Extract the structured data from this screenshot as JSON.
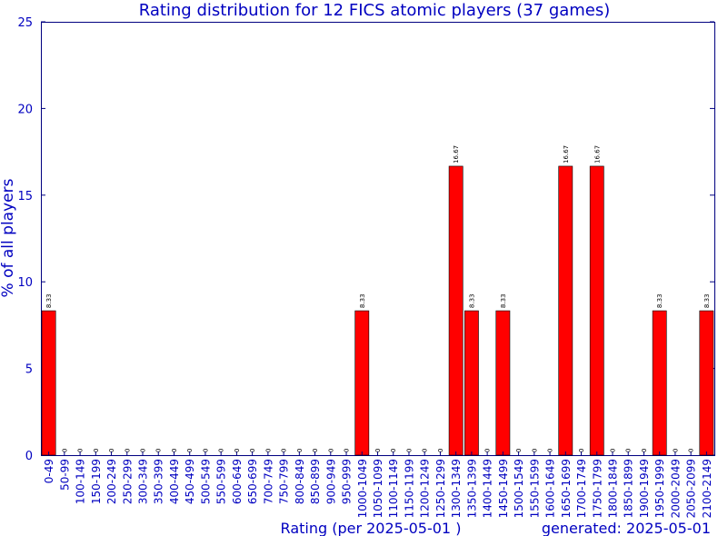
{
  "chart_data": {
    "type": "bar",
    "title": "Rating distribution for 12 FICS atomic players (37 games)",
    "xlabel": "Rating (per 2025-05-01 )",
    "ylabel": "% of all players",
    "footer": "generated: 2025-05-01",
    "ylim": [
      0,
      25
    ],
    "yticks": [
      0,
      5,
      10,
      15,
      20,
      25
    ],
    "categories": [
      "0-49",
      "50-99",
      "100-149",
      "150-199",
      "200-249",
      "250-299",
      "300-349",
      "350-399",
      "400-449",
      "450-499",
      "500-549",
      "550-599",
      "600-649",
      "650-699",
      "700-749",
      "750-799",
      "800-849",
      "850-899",
      "900-949",
      "950-999",
      "1000-1049",
      "1050-1099",
      "1100-1149",
      "1150-1199",
      "1200-1249",
      "1250-1299",
      "1300-1349",
      "1350-1399",
      "1400-1449",
      "1450-1499",
      "1500-1549",
      "1550-1599",
      "1600-1649",
      "1650-1699",
      "1700-1749",
      "1750-1799",
      "1800-1849",
      "1850-1899",
      "1900-1949",
      "1950-1999",
      "2000-2049",
      "2050-2099",
      "2100-2149"
    ],
    "values": [
      8.33,
      0,
      0,
      0,
      0,
      0,
      0,
      0,
      0,
      0,
      0,
      0,
      0,
      0,
      0,
      0,
      0,
      0,
      0,
      0,
      8.33,
      0,
      0,
      0,
      0,
      0,
      16.67,
      8.33,
      0,
      8.33,
      0,
      0,
      0,
      16.67,
      0,
      16.67,
      0,
      0,
      0,
      8.33,
      0,
      0,
      8.33
    ],
    "labels": [
      "8.33",
      "0",
      "0",
      "0",
      "0",
      "0",
      "0",
      "0",
      "0",
      "0",
      "0",
      "0",
      "0",
      "0",
      "0",
      "0",
      "0",
      "0",
      "0",
      "0",
      "8.33",
      "0",
      "0",
      "0",
      "0",
      "0",
      "16.67",
      "8.33",
      "0",
      "8.33",
      "0",
      "0",
      "0",
      "16.67",
      "0",
      "16.67",
      "0",
      "0",
      "0",
      "8.33",
      "0",
      "0",
      "8.33"
    ],
    "colors": {
      "bar": "#ff0000",
      "text": "#0000c0",
      "axis": "#000080",
      "label": "#000000"
    }
  }
}
